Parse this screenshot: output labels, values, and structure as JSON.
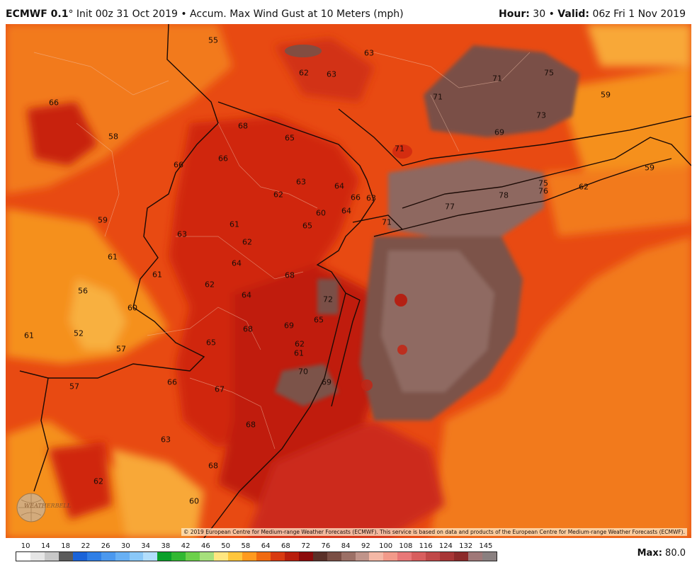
{
  "header": {
    "model": "ECMWF 0.1",
    "init_text": "° Init 00z 31 Oct 2019 • Accum. Max Wind Gust at 10 Meters (mph)",
    "hour_label": "Hour:",
    "hour_value": "30",
    "valid_label": "Valid:",
    "valid_value": "06z Fri 1 Nov 2019"
  },
  "map": {
    "copyright": "© 2019 European Centre for Medium-range Weather Forecasts (ECMWF). This service is based on data and products of the European Centre for Medium-range Weather Forecasts (ECMWF).",
    "logo_text": "WEATHERBELL",
    "labels": [
      "55",
      "63",
      "62",
      "63",
      "66",
      "71",
      "71",
      "75",
      "59",
      "58",
      "68",
      "65",
      "73",
      "69",
      "66",
      "66",
      "71",
      "63",
      "64",
      "66",
      "63",
      "62",
      "59",
      "64",
      "60",
      "78",
      "77",
      "75",
      "76",
      "62",
      "59",
      "63",
      "61",
      "65",
      "71",
      "62",
      "61",
      "64",
      "68",
      "61",
      "72",
      "56",
      "60",
      "62",
      "64",
      "52",
      "57",
      "68",
      "69",
      "65",
      "62",
      "61",
      "65",
      "70",
      "57",
      "66",
      "67",
      "69",
      "63",
      "68",
      "68",
      "62",
      "60",
      "61"
    ]
  },
  "colorbar": {
    "ticks": [
      "10",
      "14",
      "18",
      "22",
      "26",
      "30",
      "34",
      "38",
      "42",
      "46",
      "50",
      "58",
      "64",
      "68",
      "72",
      "76",
      "84",
      "92",
      "100",
      "108",
      "116",
      "124",
      "132",
      "145"
    ],
    "colors": [
      "#ffffff",
      "#e6e6e6",
      "#c8c8c8",
      "#5a5a5a",
      "#1a63d8",
      "#2f7fe6",
      "#4b98ee",
      "#68b0f4",
      "#8ac8f8",
      "#b2defc",
      "#0aa02a",
      "#32b832",
      "#6cd04a",
      "#a6e07c",
      "#ffe680",
      "#ffc63c",
      "#ff9a1e",
      "#f06a10",
      "#d83a10",
      "#b81e0c",
      "#8c0a0a",
      "#5a3028",
      "#7a4e44",
      "#9c7066",
      "#c0948a",
      "#f4b8a6",
      "#f29a8a",
      "#e87878",
      "#d85e5e",
      "#c04848",
      "#a83636",
      "#8c2a2a",
      "#a07878",
      "#8a8080"
    ],
    "max_label": "Max:",
    "max_value": "80.0"
  }
}
